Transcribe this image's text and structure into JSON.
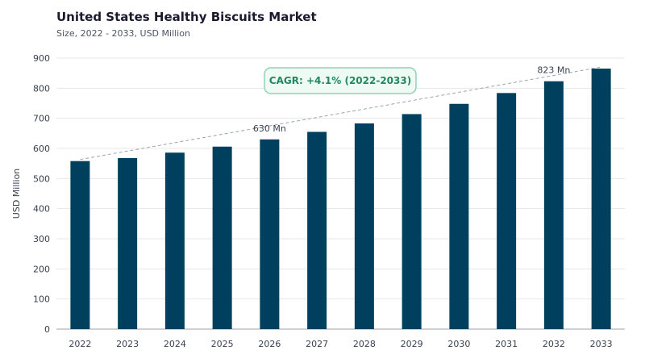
{
  "header": {
    "title": "United States Healthy Biscuits Market",
    "subtitle": "Size, 2022 - 2033, USD Million"
  },
  "colors": {
    "bar": "#00405f",
    "grid": "#e5e7eb",
    "trend": "#9ca3af",
    "cagr_border": "#8fd3b4",
    "cagr_fill": "#eefaf4",
    "cagr_text": "#1f8a5b"
  },
  "chart_data": {
    "type": "bar",
    "title": "United States Healthy Biscuits Market",
    "subtitle": "Size, 2022 - 2033, USD Million",
    "xlabel": "",
    "ylabel": "USD Million",
    "ylim": [
      0,
      900
    ],
    "yticks": [
      0,
      100,
      200,
      300,
      400,
      500,
      600,
      700,
      800,
      900
    ],
    "grid": true,
    "categories": [
      "2022",
      "2023",
      "2024",
      "2025",
      "2026",
      "2027",
      "2028",
      "2029",
      "2030",
      "2031",
      "2032",
      "2033"
    ],
    "values": [
      558,
      568,
      586,
      606,
      630,
      655,
      683,
      714,
      748,
      784,
      823,
      865
    ],
    "annotations": [
      {
        "category": "2026",
        "text": "630 Mn"
      },
      {
        "category": "2032",
        "text": "823 Mn"
      }
    ],
    "cagr_label": "CAGR: +4.1% (2022-2033)",
    "trend_line": {
      "from": "2022",
      "to": "2033"
    }
  }
}
